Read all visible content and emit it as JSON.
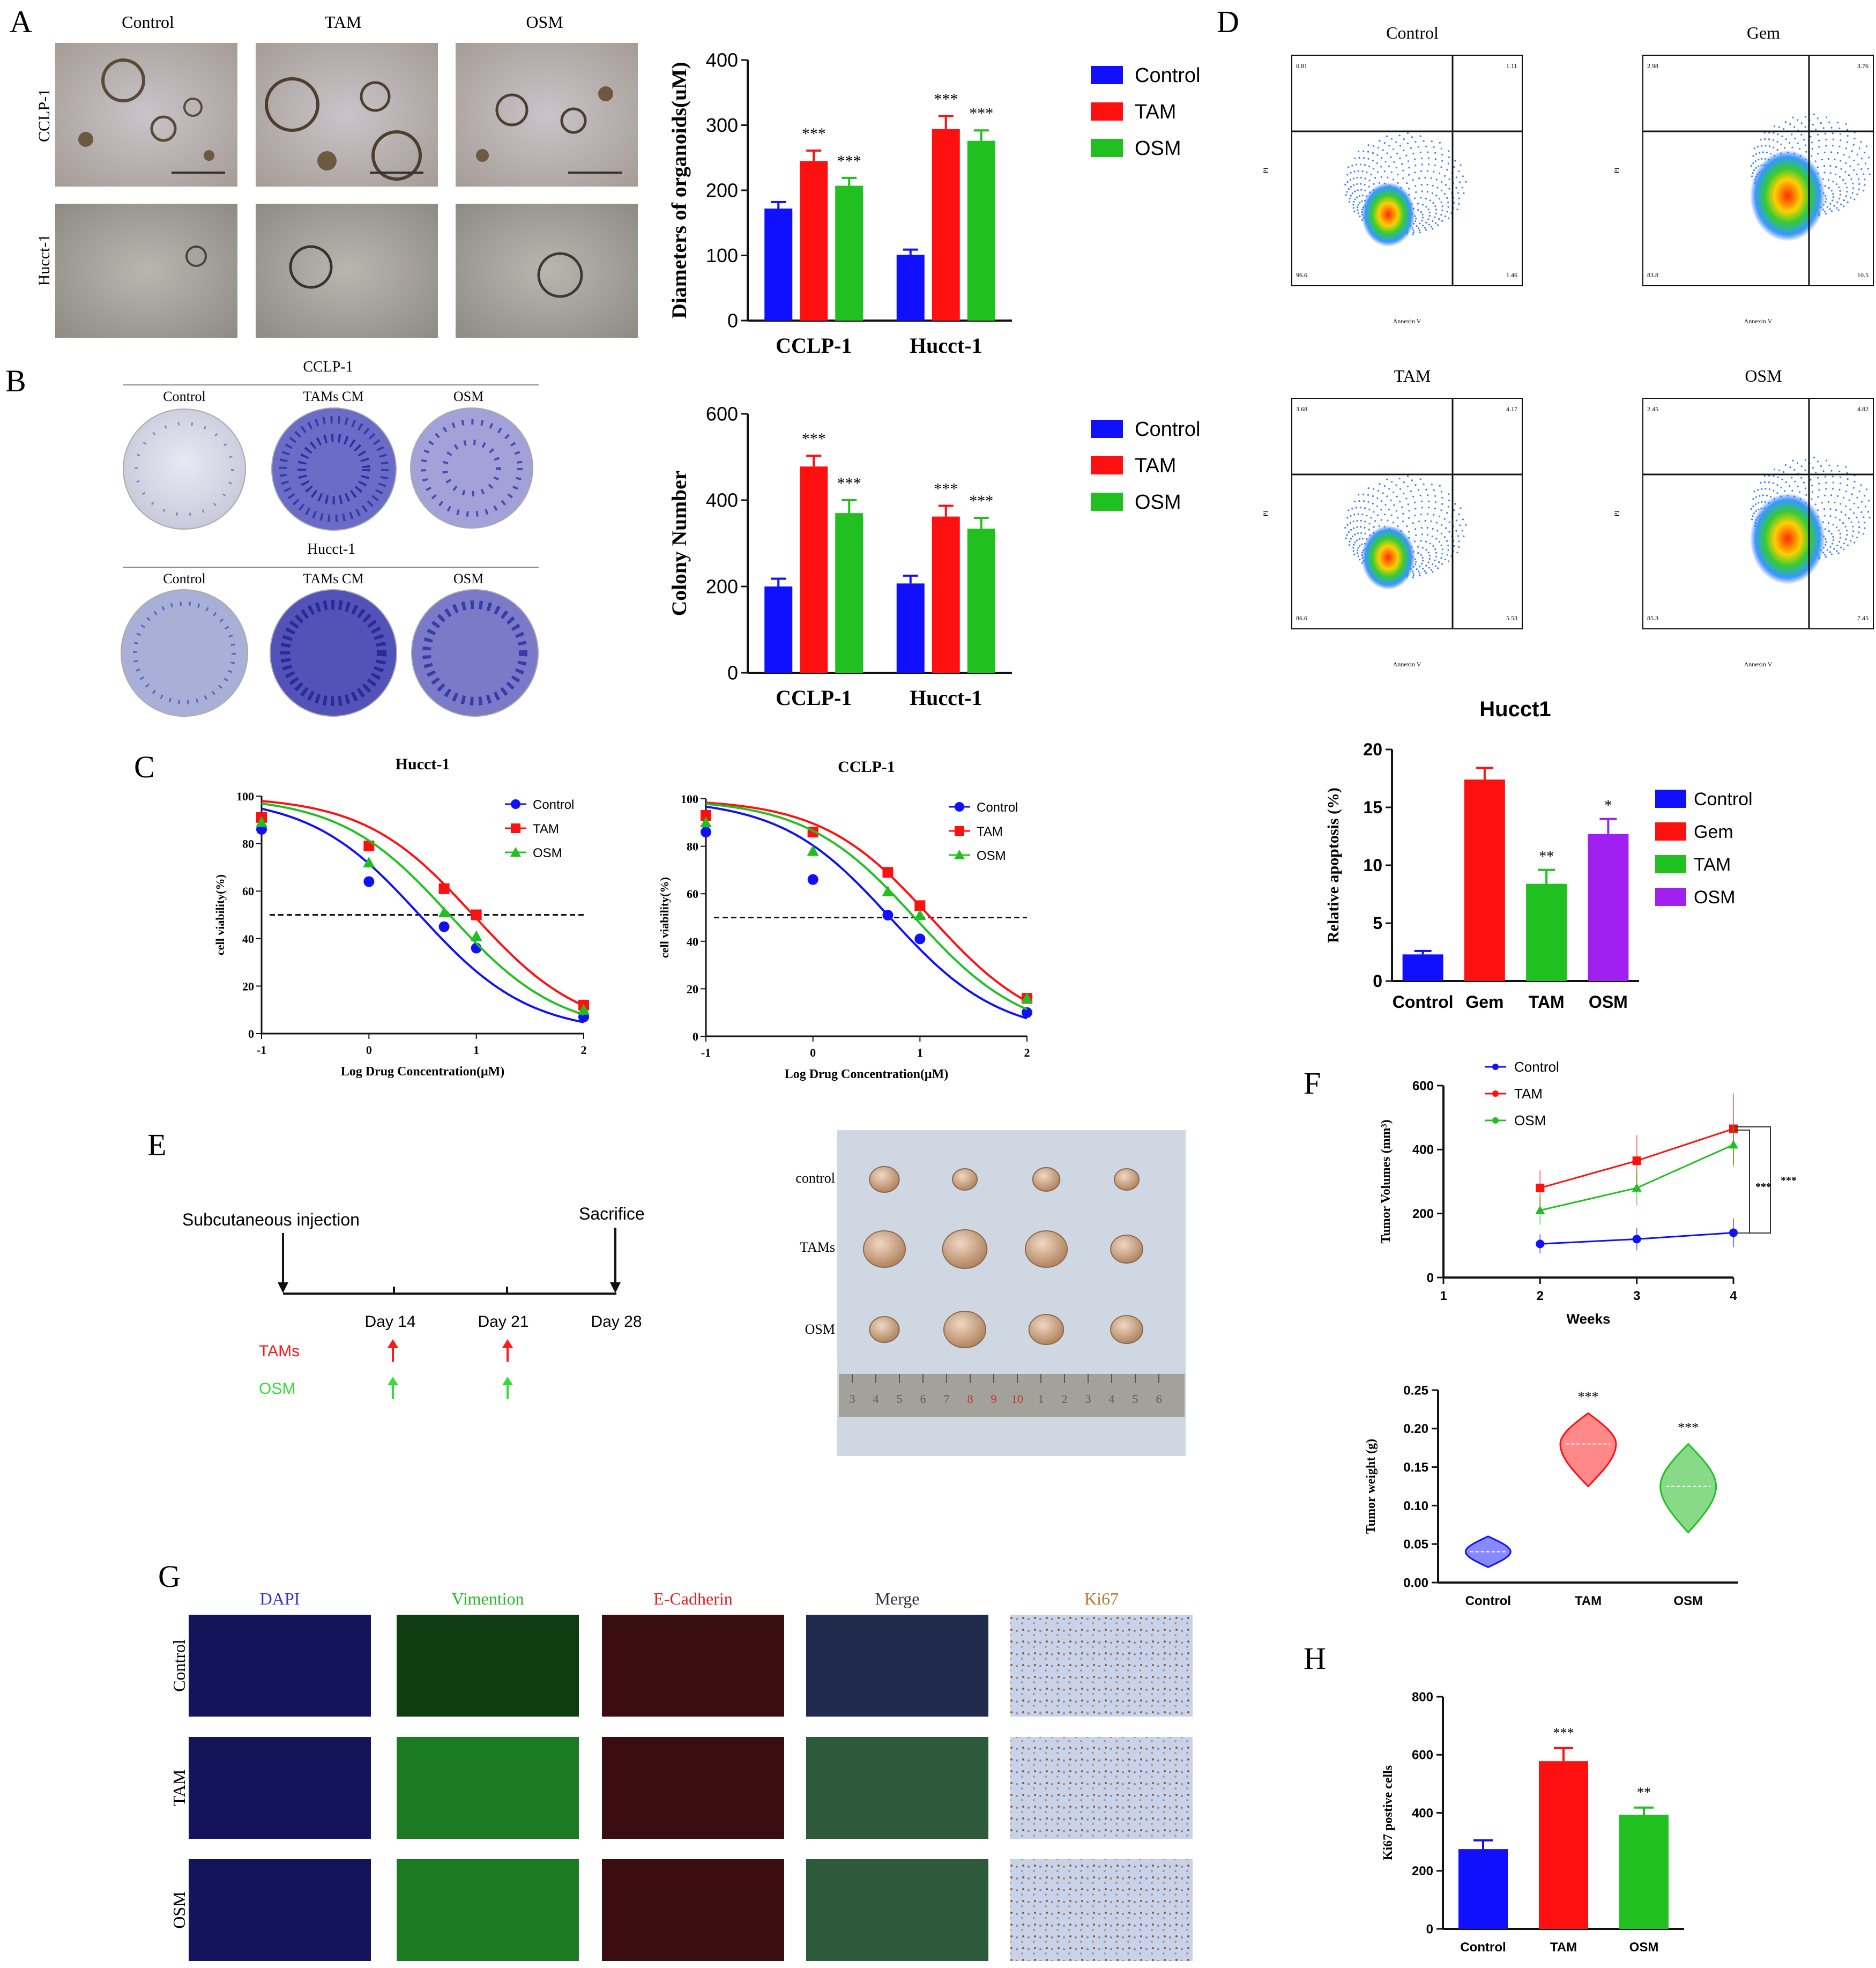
{
  "panels": {
    "A": {
      "letter": "A",
      "image_cols": [
        "Control",
        "TAM",
        "OSM"
      ],
      "image_rows": [
        "CCLP-1",
        "Hucct-1"
      ],
      "chart_key": "A"
    },
    "B": {
      "letter": "B",
      "group1": "CCLP-1",
      "group2": "Hucct-1",
      "cols": [
        "Control",
        "TAMs CM",
        "OSM"
      ],
      "chart_key": "B"
    },
    "C": {
      "letter": "C"
    },
    "D": {
      "letter": "D",
      "flow": [
        {
          "title": "Control",
          "q": [
            "0.81",
            "1.11",
            "96.6",
            "1.46"
          ]
        },
        {
          "title": "Gem",
          "q": [
            "2.98",
            "3.76",
            "83.8",
            "10.5"
          ]
        },
        {
          "title": "TAM",
          "q": [
            "3.68",
            "4.17",
            "86.6",
            "5.53"
          ]
        },
        {
          "title": "OSM",
          "q": [
            "2.45",
            "4.82",
            "85.3",
            "7.45"
          ]
        }
      ],
      "flow_xlabel": "Annexin V",
      "flow_ylabel": "PI"
    },
    "E": {
      "letter": "E",
      "injection": "Subcutaneous injection",
      "sacrifice": "Sacrifice",
      "days": [
        "Day 14",
        "Day 21",
        "Day 28"
      ],
      "treat1": "TAMs",
      "treat2": "OSM",
      "photo_rows": [
        "control",
        "TAMs",
        "OSM"
      ],
      "ruler_marks": [
        "3",
        "4",
        "5",
        "6",
        "7",
        "8",
        "9",
        "10",
        "1",
        "2",
        "3",
        "4",
        "5",
        "6"
      ]
    },
    "F": {
      "letter": "F"
    },
    "G": {
      "letter": "G",
      "cols": [
        "DAPI",
        "Vimention",
        "E-Cadherin",
        "Merge",
        "Ki67"
      ],
      "col_colors": [
        "#3333cc",
        "#22bb22",
        "#dd2222",
        "#333333",
        "#b8762a"
      ],
      "rows": [
        "Control",
        "TAM",
        "OSM"
      ]
    },
    "H": {
      "letter": "H"
    }
  },
  "colors": {
    "control": "#1010ff",
    "tam": "#ff1010",
    "osm": "#20c020",
    "purple": "#a020f0"
  },
  "chart_data": [
    {
      "id": "A",
      "type": "bar",
      "categories": [
        "CCLP-1",
        "Hucct-1"
      ],
      "series": [
        {
          "name": "Control",
          "values": [
            172,
            101
          ],
          "errors": [
            10,
            8
          ]
        },
        {
          "name": "TAM",
          "values": [
            245,
            294
          ],
          "errors": [
            16,
            20
          ]
        },
        {
          "name": "OSM",
          "values": [
            207,
            276
          ],
          "errors": [
            12,
            16
          ]
        }
      ],
      "sig": [
        [
          "",
          "***",
          "***"
        ],
        [
          "",
          "***",
          "***"
        ]
      ],
      "ylabel": "Diameters of organoids(uM)",
      "ylim": [
        0,
        400
      ],
      "yticks": [
        0,
        100,
        200,
        300,
        400
      ],
      "legend": "right"
    },
    {
      "id": "B",
      "type": "bar",
      "categories": [
        "CCLP-1",
        "Hucct-1"
      ],
      "series": [
        {
          "name": "Control",
          "values": [
            200,
            207
          ],
          "errors": [
            18,
            18
          ]
        },
        {
          "name": "TAM",
          "values": [
            478,
            362
          ],
          "errors": [
            25,
            25
          ]
        },
        {
          "name": "OSM",
          "values": [
            370,
            334
          ],
          "errors": [
            30,
            25
          ]
        }
      ],
      "sig": [
        [
          "",
          "***",
          "***"
        ],
        [
          "",
          "***",
          "***"
        ]
      ],
      "ylabel": "Colony Number",
      "ylim": [
        0,
        600
      ],
      "yticks": [
        0,
        200,
        400,
        600
      ],
      "legend": "right"
    },
    {
      "id": "C1",
      "type": "scatter",
      "title": "Hucct-1",
      "xlabel": "Log Drug Concentration(μM)",
      "ylabel": "cell viability(%)",
      "xlim": [
        -1,
        2
      ],
      "ylim": [
        0,
        100
      ],
      "xticks": [
        -1,
        0,
        1,
        2
      ],
      "yticks": [
        0,
        20,
        40,
        60,
        80,
        100
      ],
      "x": [
        -1,
        0,
        0.7,
        1,
        2
      ],
      "ic50_line": 50,
      "series": [
        {
          "name": "Control",
          "marker": "circle",
          "values": [
            86,
            64,
            45,
            36,
            7
          ],
          "ic50": 0.47
        },
        {
          "name": "TAM",
          "marker": "square",
          "values": [
            91,
            79,
            61,
            50,
            12
          ],
          "ic50": 0.97
        },
        {
          "name": "OSM",
          "marker": "triangle",
          "values": [
            89,
            72,
            51,
            41,
            10
          ],
          "ic50": 0.75
        }
      ],
      "legend": "top-right"
    },
    {
      "id": "C2",
      "type": "scatter",
      "title": "CCLP-1",
      "xlabel": "Log Drug Concentration(μM)",
      "ylabel": "cell viability(%)",
      "xlim": [
        -1,
        2
      ],
      "ylim": [
        0,
        100
      ],
      "xticks": [
        -1,
        0,
        1,
        2
      ],
      "yticks": [
        0,
        20,
        40,
        60,
        80,
        100
      ],
      "x": [
        -1,
        0,
        0.7,
        1,
        2
      ],
      "ic50_line": 50,
      "series": [
        {
          "name": "Control",
          "marker": "circle",
          "values": [
            86,
            66,
            51,
            41,
            10
          ],
          "ic50": 0.72
        },
        {
          "name": "TAM",
          "marker": "square",
          "values": [
            93,
            86,
            69,
            55,
            16
          ],
          "ic50": 1.1
        },
        {
          "name": "OSM",
          "marker": "triangle",
          "values": [
            90,
            78,
            61,
            51,
            16
          ],
          "ic50": 0.95
        }
      ],
      "legend": "top-right"
    },
    {
      "id": "D",
      "type": "bar",
      "title": "Hucct1",
      "categories": [
        "Control",
        "Gem",
        "TAM",
        "OSM"
      ],
      "values": [
        2.3,
        17.4,
        8.4,
        12.7
      ],
      "errors": [
        0.3,
        1.0,
        1.2,
        1.3
      ],
      "sig": [
        "",
        "",
        "**",
        "*"
      ],
      "ylabel": "Relative apoptosis (%)",
      "ylim": [
        0,
        20
      ],
      "yticks": [
        0,
        5,
        10,
        15,
        20
      ],
      "legend": "right"
    },
    {
      "id": "F1",
      "type": "line",
      "xlabel": "Weeks",
      "ylabel": "Tumor Volumes (mm³)",
      "x": [
        2,
        3,
        4
      ],
      "xlim": [
        1,
        4
      ],
      "ylim": [
        0,
        600
      ],
      "xticks": [
        1,
        2,
        3,
        4
      ],
      "yticks": [
        0,
        200,
        400,
        600
      ],
      "series": [
        {
          "name": "Control",
          "values": [
            105,
            120,
            140
          ],
          "errors": [
            30,
            35,
            45
          ]
        },
        {
          "name": "TAM",
          "values": [
            280,
            365,
            465
          ],
          "errors": [
            55,
            80,
            110
          ]
        },
        {
          "name": "OSM",
          "values": [
            210,
            280,
            415
          ],
          "errors": [
            45,
            55,
            70
          ]
        }
      ],
      "sig": [
        "***",
        "***"
      ],
      "legend": "top-left"
    },
    {
      "id": "F2",
      "type": "violin",
      "categories": [
        "Control",
        "TAM",
        "OSM"
      ],
      "values": [
        0.04,
        0.18,
        0.125
      ],
      "ranges": [
        [
          0.02,
          0.06
        ],
        [
          0.125,
          0.22
        ],
        [
          0.065,
          0.18
        ]
      ],
      "sig": [
        "",
        "***",
        "***"
      ],
      "ylabel": "Tumor weight (g)",
      "ylim": [
        0,
        0.25
      ],
      "yticks": [
        0.0,
        0.05,
        0.1,
        0.15,
        0.2,
        0.25
      ]
    },
    {
      "id": "H",
      "type": "bar",
      "categories": [
        "Control",
        "TAM",
        "OSM"
      ],
      "values": [
        275,
        578,
        393
      ],
      "errors": [
        30,
        45,
        25
      ],
      "sig": [
        "",
        "***",
        "**"
      ],
      "ylabel": "Ki67 postive cells",
      "ylim": [
        0,
        800
      ],
      "yticks": [
        0,
        200,
        400,
        600,
        800
      ]
    }
  ]
}
